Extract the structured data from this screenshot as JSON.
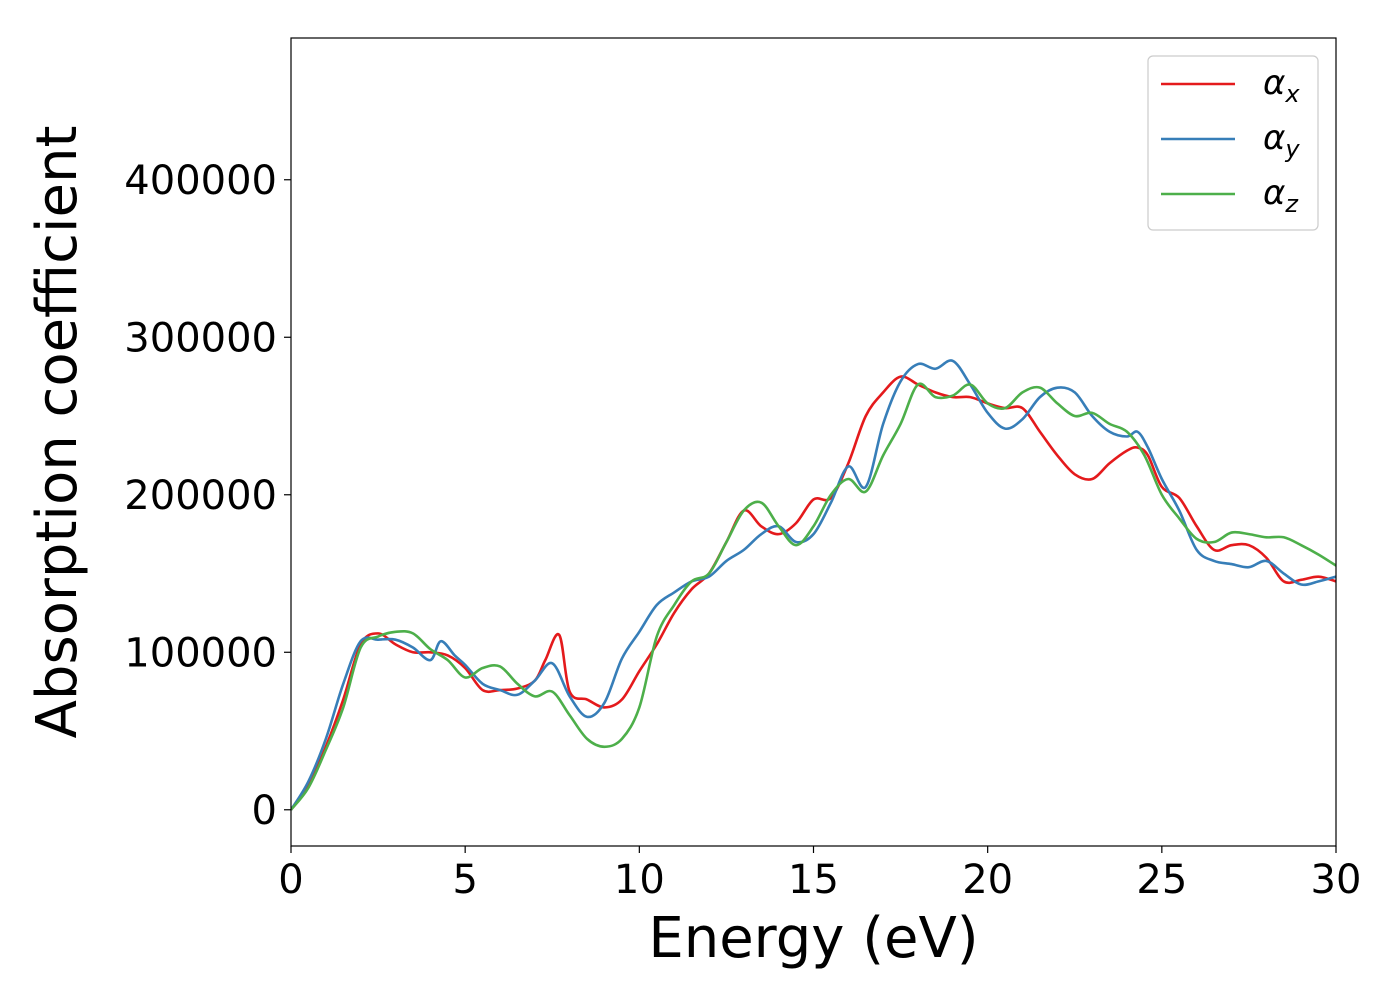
{
  "chart_data": {
    "type": "line",
    "title": "",
    "xlabel": "Energy (eV)",
    "ylabel": "Absorption coefficient",
    "xlim": [
      0,
      30
    ],
    "ylim": [
      -23000,
      490000
    ],
    "xticks": [
      0,
      5,
      10,
      15,
      20,
      25,
      30
    ],
    "yticks": [
      0,
      100000,
      200000,
      300000,
      400000
    ],
    "xtick_labels": [
      "0",
      "5",
      "10",
      "15",
      "20",
      "25",
      "30"
    ],
    "ytick_labels": [
      "0",
      "100000",
      "200000",
      "300000",
      "400000"
    ],
    "grid": false,
    "legend_position": "top-right",
    "colors": {
      "alpha_x": "#e41a1c",
      "alpha_y": "#377eb8",
      "alpha_z": "#4daf4a"
    },
    "series": [
      {
        "name": "α_x",
        "name_main": "α",
        "name_sub": "x",
        "color": "#e41a1c",
        "x": [
          0,
          0.5,
          1,
          1.5,
          2,
          2.5,
          3,
          3.5,
          4,
          4.5,
          5,
          5.5,
          6,
          6.5,
          7,
          7.3,
          7.7,
          8,
          8.5,
          9,
          9.5,
          10,
          10.5,
          11,
          11.5,
          12,
          12.5,
          13,
          13.5,
          14,
          14.5,
          15,
          15.5,
          16,
          16.5,
          17,
          17.5,
          18,
          18.5,
          19,
          19.5,
          20,
          20.5,
          21,
          21.5,
          22,
          22.5,
          23,
          23.5,
          24,
          24.3,
          24.6,
          25,
          25.5,
          26,
          26.5,
          27,
          27.5,
          28,
          28.5,
          29,
          29.5,
          30
        ],
        "y": [
          0,
          15000,
          40000,
          70000,
          105000,
          112000,
          105000,
          100000,
          100000,
          98000,
          90000,
          76000,
          76000,
          77000,
          82000,
          95000,
          111000,
          75000,
          70000,
          65000,
          70000,
          88000,
          105000,
          125000,
          140000,
          150000,
          170000,
          190000,
          180000,
          175000,
          182000,
          197000,
          198000,
          220000,
          250000,
          265000,
          275000,
          270000,
          265000,
          262000,
          262000,
          258000,
          255000,
          255000,
          240000,
          225000,
          213000,
          210000,
          220000,
          228000,
          230000,
          225000,
          205000,
          198000,
          180000,
          165000,
          168000,
          168000,
          160000,
          145000,
          146000,
          148000,
          145000
        ]
      },
      {
        "name": "α_y",
        "name_main": "α",
        "name_sub": "y",
        "color": "#377eb8",
        "x": [
          0,
          0.5,
          1,
          1.5,
          2,
          2.5,
          3,
          3.5,
          4,
          4.3,
          4.7,
          5,
          5.5,
          6,
          6.5,
          7,
          7.5,
          8,
          8.5,
          9,
          9.5,
          10,
          10.5,
          11,
          11.5,
          12,
          12.5,
          13,
          13.5,
          14,
          14.5,
          15,
          15.5,
          16,
          16.5,
          17,
          17.5,
          18,
          18.5,
          19,
          19.5,
          20,
          20.5,
          21,
          21.5,
          22,
          22.5,
          23,
          23.5,
          24,
          24.3,
          24.6,
          25,
          25.5,
          26,
          26.5,
          27,
          27.5,
          28,
          28.5,
          29,
          29.5,
          30
        ],
        "y": [
          0,
          18000,
          45000,
          80000,
          107000,
          108000,
          108000,
          103000,
          95000,
          107000,
          98000,
          92000,
          80000,
          76000,
          73000,
          82000,
          93000,
          72000,
          59000,
          68000,
          96000,
          113000,
          130000,
          138000,
          145000,
          148000,
          158000,
          165000,
          175000,
          180000,
          170000,
          175000,
          195000,
          218000,
          205000,
          245000,
          272000,
          283000,
          280000,
          285000,
          270000,
          252000,
          242000,
          248000,
          262000,
          268000,
          265000,
          250000,
          240000,
          237000,
          240000,
          230000,
          210000,
          190000,
          165000,
          158000,
          156000,
          154000,
          158000,
          150000,
          143000,
          145000,
          148000
        ]
      },
      {
        "name": "α_z",
        "name_main": "α",
        "name_sub": "z",
        "color": "#4daf4a",
        "x": [
          0,
          0.5,
          1,
          1.5,
          2,
          2.5,
          3,
          3.5,
          4,
          4.5,
          5,
          5.5,
          6,
          6.5,
          7,
          7.5,
          8,
          8.5,
          9,
          9.5,
          10,
          10.5,
          11,
          11.5,
          12,
          12.5,
          13,
          13.5,
          14,
          14.5,
          15,
          15.5,
          16,
          16.5,
          17,
          17.5,
          18,
          18.5,
          19,
          19.5,
          20,
          20.5,
          21,
          21.5,
          22,
          22.5,
          23,
          23.5,
          24,
          24.5,
          25,
          25.5,
          26,
          26.5,
          27,
          27.5,
          28,
          28.5,
          29,
          29.5,
          30
        ],
        "y": [
          0,
          14000,
          38000,
          65000,
          103000,
          110000,
          113000,
          112000,
          102000,
          95000,
          84000,
          90000,
          91000,
          80000,
          72000,
          75000,
          60000,
          45000,
          40000,
          45000,
          65000,
          110000,
          130000,
          145000,
          150000,
          170000,
          190000,
          195000,
          180000,
          168000,
          180000,
          200000,
          210000,
          202000,
          225000,
          245000,
          270000,
          262000,
          263000,
          270000,
          258000,
          255000,
          265000,
          268000,
          258000,
          250000,
          252000,
          245000,
          240000,
          225000,
          200000,
          185000,
          172000,
          170000,
          176000,
          175000,
          173000,
          173000,
          168000,
          162000,
          155000
        ]
      }
    ]
  }
}
